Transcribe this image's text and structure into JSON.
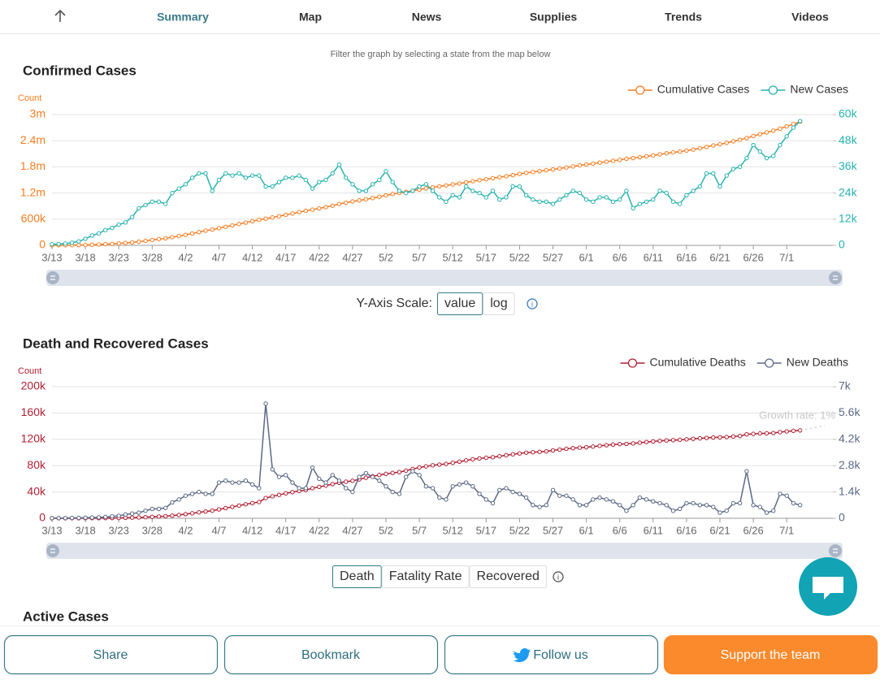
{
  "nav": {
    "items": [
      "Summary",
      "Map",
      "News",
      "Supplies",
      "Trends",
      "Videos"
    ],
    "active": 0
  },
  "filter_note": "Filter the graph by selecting a state from the map below",
  "chart_data": [
    {
      "type": "line",
      "title": "Confirmed Cases",
      "y_label": "Count",
      "categories": [
        "3/13",
        null,
        null,
        null,
        null,
        "3/18",
        null,
        null,
        null,
        null,
        "3/23",
        null,
        null,
        null,
        null,
        "3/28",
        null,
        null,
        null,
        null,
        "4/2",
        null,
        null,
        null,
        null,
        "4/7",
        null,
        null,
        null,
        null,
        "4/12",
        null,
        null,
        null,
        null,
        "4/17",
        null,
        null,
        null,
        null,
        "4/22",
        null,
        null,
        null,
        null,
        "4/27",
        null,
        null,
        null,
        null,
        "5/2",
        null,
        null,
        null,
        null,
        "5/7",
        null,
        null,
        null,
        null,
        "5/12",
        null,
        null,
        null,
        null,
        "5/17",
        null,
        null,
        null,
        null,
        "5/22",
        null,
        null,
        null,
        null,
        "5/27",
        null,
        null,
        null,
        null,
        "6/1",
        null,
        null,
        null,
        null,
        "6/6",
        null,
        null,
        null,
        null,
        "6/11",
        null,
        null,
        null,
        null,
        "6/16",
        null,
        null,
        null,
        null,
        "6/21",
        null,
        null,
        null,
        null,
        "6/26",
        null,
        null,
        null,
        null,
        "7/1",
        null,
        null
      ],
      "series": [
        {
          "name": "Cumulative Cases",
          "color": "#f57c20",
          "axis": "y",
          "values": [
            2000,
            3000,
            3000,
            5000,
            6000,
            9000,
            14000,
            19000,
            26000,
            34000,
            44000,
            54000,
            67000,
            84000,
            103000,
            123000,
            143000,
            162000,
            186000,
            212000,
            240000,
            271000,
            304000,
            337000,
            362000,
            392000,
            425000,
            457000,
            490000,
            521000,
            553000,
            585000,
            612000,
            639000,
            668000,
            699000,
            730000,
            762000,
            792000,
            818000,
            847000,
            877000,
            910000,
            947000,
            978000,
            1006000,
            1031000,
            1056000,
            1084000,
            1114000,
            1148000,
            1177000,
            1202000,
            1226000,
            1251000,
            1278000,
            1306000,
            1331000,
            1353000,
            1373000,
            1396000,
            1418000,
            1445000,
            1470000,
            1494000,
            1516000,
            1541000,
            1562000,
            1584000,
            1611000,
            1638000,
            1661000,
            1682000,
            1702000,
            1722000,
            1741000,
            1762000,
            1785000,
            1810000,
            1834000,
            1855000,
            1875000,
            1897000,
            1919000,
            1939000,
            1960000,
            1985000,
            2002000,
            2021000,
            2041000,
            2062000,
            2087000,
            2111000,
            2131000,
            2150000,
            2173000,
            2198000,
            2225000,
            2258000,
            2291000,
            2318000,
            2350000,
            2385000,
            2421000,
            2461000,
            2507000,
            2550000,
            2590000,
            2631000,
            2677000,
            2727000,
            2781000,
            2838000
          ]
        },
        {
          "name": "New Cases",
          "color": "#27b2ae",
          "axis": "y2",
          "values": [
            500,
            600,
            800,
            1200,
            1800,
            3000,
            4500,
            5500,
            7000,
            8000,
            9500,
            10500,
            13000,
            17000,
            18500,
            20000,
            20000,
            19000,
            24000,
            26000,
            28000,
            31000,
            33000,
            33000,
            25000,
            30000,
            33000,
            32000,
            33000,
            31000,
            32000,
            32000,
            27000,
            27000,
            29000,
            31000,
            31000,
            32000,
            30000,
            26000,
            29000,
            30000,
            33000,
            37000,
            31000,
            28000,
            25000,
            25000,
            28000,
            30000,
            34000,
            29000,
            25000,
            24000,
            25000,
            27000,
            28000,
            25000,
            22000,
            20000,
            23000,
            22000,
            27000,
            25000,
            24000,
            22000,
            25000,
            21000,
            22000,
            27000,
            27000,
            23000,
            21000,
            20000,
            20000,
            19000,
            21000,
            23000,
            25000,
            24000,
            21000,
            20000,
            22000,
            22000,
            20000,
            21000,
            25000,
            17000,
            19000,
            20000,
            21000,
            25000,
            24000,
            20000,
            19000,
            23000,
            25000,
            27000,
            33000,
            33000,
            27000,
            32000,
            35000,
            36000,
            40000,
            46000,
            43000,
            40000,
            41000,
            46000,
            50000,
            54000,
            57000
          ]
        }
      ],
      "ylim": [
        0,
        3000000
      ],
      "yticks": [
        0,
        {
          "value": 600000,
          "label": "600k"
        },
        {
          "value": 1200000,
          "label": "1.2m"
        },
        {
          "value": 1800000,
          "label": "1.8m"
        },
        {
          "value": 2400000,
          "label": "2.4m"
        },
        {
          "value": 3000000,
          "label": "3m"
        }
      ],
      "y2lim": [
        0,
        60000
      ],
      "y2ticks": [
        0,
        {
          "value": 12000,
          "label": "12k"
        },
        {
          "value": 24000,
          "label": "24k"
        },
        {
          "value": 36000,
          "label": "36k"
        },
        {
          "value": 48000,
          "label": "48k"
        },
        {
          "value": 60000,
          "label": "60k"
        }
      ],
      "grid": true,
      "legend": "top-right"
    },
    {
      "type": "line",
      "title": "Death and Recovered Cases",
      "y_label": "Count",
      "categories": [
        "3/13",
        null,
        null,
        null,
        null,
        "3/18",
        null,
        null,
        null,
        null,
        "3/23",
        null,
        null,
        null,
        null,
        "3/28",
        null,
        null,
        null,
        null,
        "4/2",
        null,
        null,
        null,
        null,
        "4/7",
        null,
        null,
        null,
        null,
        "4/12",
        null,
        null,
        null,
        null,
        "4/17",
        null,
        null,
        null,
        null,
        "4/22",
        null,
        null,
        null,
        null,
        "4/27",
        null,
        null,
        null,
        null,
        "5/2",
        null,
        null,
        null,
        null,
        "5/7",
        null,
        null,
        null,
        null,
        "5/12",
        null,
        null,
        null,
        null,
        "5/17",
        null,
        null,
        null,
        null,
        "5/22",
        null,
        null,
        null,
        null,
        "5/27",
        null,
        null,
        null,
        null,
        "6/1",
        null,
        null,
        null,
        null,
        "6/6",
        null,
        null,
        null,
        null,
        "6/11",
        null,
        null,
        null,
        null,
        "6/16",
        null,
        null,
        null,
        null,
        "6/21",
        null,
        null,
        null,
        null,
        "6/26",
        null,
        null,
        null,
        null,
        "7/1",
        null,
        null
      ],
      "series": [
        {
          "name": "Cumulative Deaths",
          "color": "#b01f33",
          "axis": "y",
          "values": [
            40,
            50,
            60,
            80,
            100,
            130,
            170,
            220,
            290,
            390,
            520,
            720,
            970,
            1270,
            1670,
            2170,
            2670,
            3220,
            4070,
            5070,
            6270,
            7570,
            8970,
            10270,
            11570,
            13470,
            15470,
            17370,
            19270,
            21270,
            23070,
            24670,
            30770,
            33370,
            35570,
            37870,
            39770,
            41370,
            42970,
            45670,
            47770,
            49670,
            51970,
            53970,
            55570,
            56970,
            59170,
            61570,
            63770,
            65770,
            67470,
            68870,
            70170,
            72370,
            74870,
            77170,
            78870,
            80470,
            81570,
            82570,
            84270,
            86070,
            87970,
            89670,
            90970,
            91970,
            92770,
            94270,
            95870,
            97270,
            98570,
            99670,
            100370,
            100970,
            101670,
            103170,
            104370,
            105570,
            106570,
            107270,
            107970,
            108970,
            110070,
            111070,
            111970,
            112670,
            113070,
            113770,
            114870,
            115870,
            116770,
            117570,
            118270,
            118670,
            119170,
            119970,
            120770,
            121470,
            122170,
            122770,
            123070,
            123470,
            124270,
            125070,
            127570,
            128270,
            128870,
            129170,
            129570,
            130870,
            132070,
            132870,
            133570
          ]
        },
        {
          "name": "New Deaths",
          "color": "#5b6986",
          "axis": "y2",
          "values": [
            10,
            10,
            10,
            20,
            20,
            30,
            40,
            50,
            70,
            100,
            130,
            200,
            250,
            300,
            400,
            500,
            500,
            550,
            850,
            1000,
            1200,
            1300,
            1400,
            1300,
            1300,
            1900,
            2000,
            1900,
            1900,
            2000,
            1800,
            1600,
            6100,
            2600,
            2200,
            2300,
            1900,
            1600,
            1600,
            2700,
            2100,
            1900,
            2300,
            2000,
            1600,
            1400,
            2200,
            2400,
            2200,
            2000,
            1700,
            1400,
            1300,
            2200,
            2500,
            2300,
            1700,
            1600,
            1100,
            1000,
            1700,
            1800,
            1900,
            1700,
            1300,
            1000,
            800,
            1500,
            1600,
            1400,
            1300,
            1100,
            700,
            600,
            700,
            1500,
            1200,
            1200,
            1000,
            700,
            700,
            1000,
            1100,
            1000,
            900,
            700,
            400,
            700,
            1100,
            1000,
            900,
            800,
            700,
            400,
            500,
            800,
            800,
            700,
            700,
            600,
            300,
            400,
            800,
            800,
            2500,
            700,
            600,
            300,
            400,
            1300,
            1200,
            800,
            700
          ]
        }
      ],
      "ylim": [
        0,
        200000
      ],
      "yticks": [
        0,
        {
          "value": 40000,
          "label": "40k"
        },
        {
          "value": 80000,
          "label": "80k"
        },
        {
          "value": 120000,
          "label": "120k"
        },
        {
          "value": 160000,
          "label": "160k"
        },
        {
          "value": 200000,
          "label": "200k"
        }
      ],
      "y2lim": [
        0,
        7000
      ],
      "y2ticks": [
        0,
        {
          "value": 1400,
          "label": "1.4k"
        },
        {
          "value": 2800,
          "label": "2.8k"
        },
        {
          "value": 4200,
          "label": "4.2k"
        },
        {
          "value": 5600,
          "label": "5.6k"
        },
        {
          "value": 7000,
          "label": "7k"
        }
      ],
      "grid": true,
      "legend": "top-right",
      "annotation": "Growth rate: 1%"
    }
  ],
  "scale_control": {
    "label": "Y-Axis Scale:",
    "options": [
      "value",
      "log"
    ],
    "active": 0
  },
  "death_tabs": {
    "options": [
      "Death",
      "Fatality Rate",
      "Recovered"
    ],
    "active": 0
  },
  "next_section": "Active Cases",
  "buttons": [
    "Share",
    "Bookmark",
    "Follow us",
    "Support the team"
  ]
}
